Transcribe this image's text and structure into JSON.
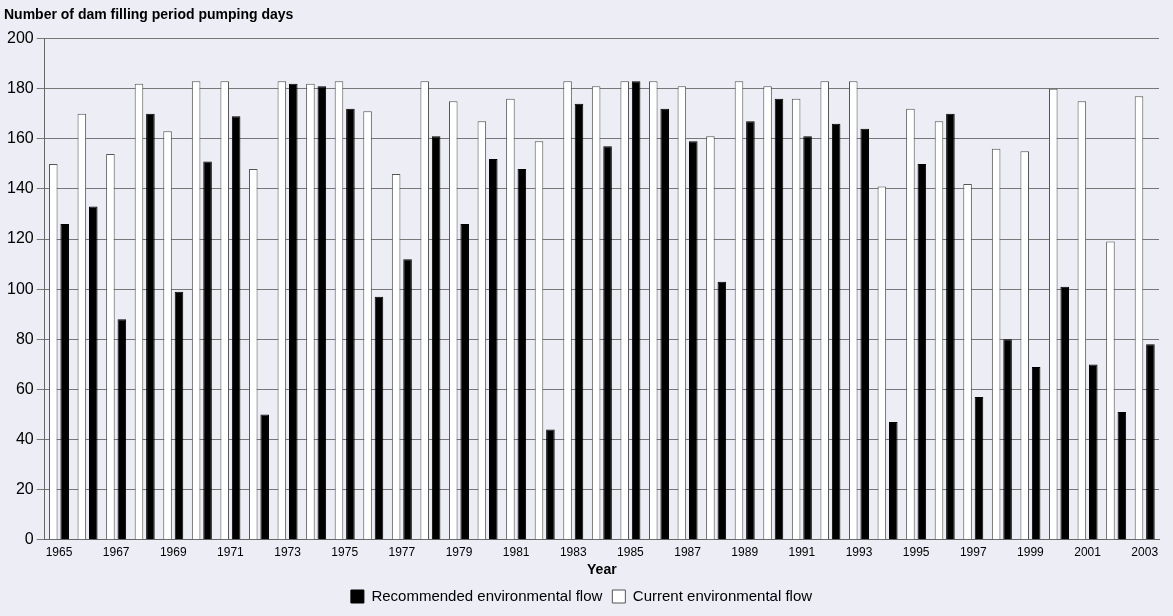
{
  "chart_data": {
    "type": "bar",
    "ylabel": "Number of dam filling period pumping days",
    "xlabel": "Year",
    "categories": [
      "1965",
      null,
      "1967",
      null,
      "1969",
      null,
      "1971",
      null,
      "1973",
      null,
      "1975",
      null,
      "1977",
      null,
      "1979",
      null,
      "1981",
      null,
      "1983",
      null,
      "1985",
      null,
      "1987",
      null,
      "1989",
      null,
      "1991",
      null,
      "1993",
      null,
      "1995",
      null,
      "1997",
      null,
      "1999",
      null,
      "2001",
      null,
      "2003"
    ],
    "series": [
      {
        "name": "Recommended environmental flow",
        "color": "#000000",
        "values": [
          126,
          133,
          88,
          170,
          99,
          151,
          169,
          50,
          182,
          181,
          172,
          97,
          112,
          161,
          126,
          152,
          148,
          44,
          174,
          157,
          183,
          172,
          159,
          103,
          167,
          176,
          161,
          166,
          164,
          47,
          150,
          170,
          57,
          80,
          69,
          101,
          70,
          51,
          78
        ]
      },
      {
        "name": "Current environmental flow",
        "color": "#ffffff",
        "values": [
          150,
          170,
          154,
          182,
          163,
          183,
          183,
          148,
          183,
          182,
          183,
          171,
          146,
          183,
          175,
          167,
          176,
          159,
          183,
          181,
          183,
          183,
          181,
          161,
          183,
          181,
          176,
          183,
          183,
          141,
          172,
          167,
          142,
          156,
          155,
          180,
          175,
          119,
          177
        ]
      }
    ],
    "ylim": [
      0,
      200
    ],
    "yticks": [
      0,
      20,
      40,
      60,
      80,
      100,
      120,
      140,
      160,
      180,
      200
    ],
    "grid": "y",
    "legend": "bottom"
  }
}
